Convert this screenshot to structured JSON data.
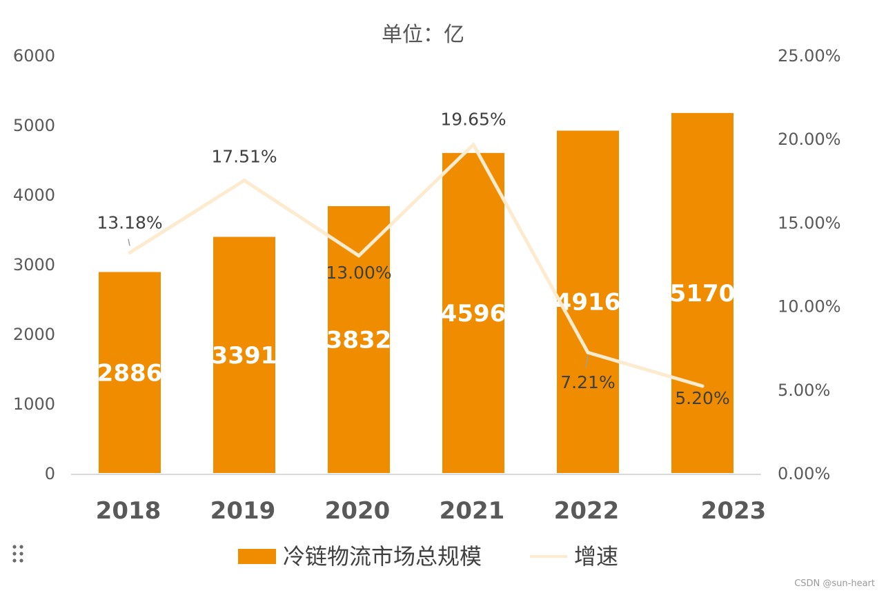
{
  "chart_data": {
    "type": "bar",
    "title": "单位：亿",
    "categories": [
      "2018",
      "2019",
      "2020",
      "2021",
      "2022",
      "2023"
    ],
    "series": [
      {
        "name": "冷链物流市场总规模",
        "type": "bar",
        "axis": "left",
        "values": [
          2886,
          3391,
          3832,
          4596,
          4916,
          5170
        ],
        "labels": [
          "2886",
          "3391",
          "3832",
          "4596",
          "4916",
          "5170"
        ]
      },
      {
        "name": "增速",
        "type": "line",
        "axis": "right",
        "values": [
          13.18,
          17.51,
          13.0,
          19.65,
          7.21,
          5.2
        ],
        "labels": [
          "13.18%",
          "17.51%",
          "13.00%",
          "19.65%",
          "7.21%",
          "5.20%"
        ]
      }
    ],
    "y_left": {
      "min": 0,
      "max": 6000,
      "ticks": [
        "0",
        "1000",
        "2000",
        "3000",
        "4000",
        "5000",
        "6000"
      ]
    },
    "y_right": {
      "min": 0,
      "max": 25,
      "ticks": [
        "0.00%",
        "5.00%",
        "10.00%",
        "15.00%",
        "20.00%",
        "25.00%"
      ]
    },
    "legend": {
      "position": "bottom",
      "items": [
        "冷链物流市场总规模",
        "增速"
      ]
    },
    "grid": false
  },
  "colors": {
    "bar": "#f08c00",
    "line": "#fdebd0",
    "axis": "#d9d9d9",
    "text": "#595959"
  },
  "watermark": "CSDN @sun-heart"
}
